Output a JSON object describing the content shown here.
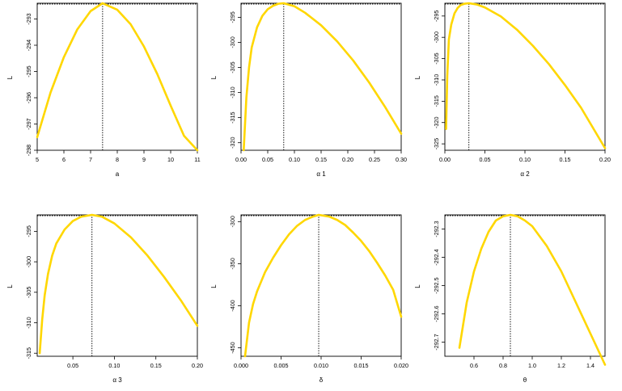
{
  "figure": {
    "curve_color": "#FFD700",
    "ref_line_color": "#000000"
  },
  "chart_data": [
    {
      "type": "line",
      "xlabel": "a",
      "ylabel": "L",
      "xlim": [
        5,
        11
      ],
      "ylim": [
        -298.0,
        -292.4
      ],
      "xticks": [
        5,
        6,
        7,
        8,
        9,
        10,
        11
      ],
      "xtick_labels": [
        "5",
        "6",
        "7",
        "8",
        "9",
        "10",
        "11"
      ],
      "yticks": [
        -298,
        -297,
        -296,
        -295,
        -294,
        -293
      ],
      "ytick_labels": [
        "-298",
        "-297",
        "-296",
        "-295",
        "-294",
        "-293"
      ],
      "reference": {
        "x": 7.45,
        "y": -292.4
      },
      "series": [
        {
          "x": [
            5,
            5.5,
            6,
            6.5,
            7,
            7.45,
            8,
            8.5,
            9,
            9.5,
            10,
            10.5,
            11
          ],
          "y": [
            -297.5,
            -295.8,
            -294.45,
            -293.4,
            -292.7,
            -292.4,
            -292.65,
            -293.2,
            -294.05,
            -295.1,
            -296.3,
            -297.45,
            -298.0
          ]
        }
      ]
    },
    {
      "type": "line",
      "xlabel": "α 1",
      "ylabel": "L",
      "xlim": [
        0.0,
        0.3
      ],
      "ylim": [
        -321.5,
        -292.2
      ],
      "xticks": [
        0.0,
        0.05,
        0.1,
        0.15,
        0.2,
        0.25,
        0.3
      ],
      "xtick_labels": [
        "0.00",
        "0.05",
        "0.10",
        "0.15",
        "0.20",
        "0.25",
        "0.30"
      ],
      "yticks": [
        -320,
        -315,
        -310,
        -305,
        -300,
        -295
      ],
      "ytick_labels": [
        "-320",
        "-315",
        "-310",
        "-305",
        "-300",
        "-295"
      ],
      "reference": {
        "x": 0.08,
        "y": -292.2
      },
      "series": [
        {
          "x": [
            0.005,
            0.01,
            0.015,
            0.02,
            0.03,
            0.04,
            0.05,
            0.06,
            0.07,
            0.08,
            0.1,
            0.12,
            0.15,
            0.18,
            0.21,
            0.24,
            0.27,
            0.3
          ],
          "y": [
            -321.5,
            -311.0,
            -305.0,
            -301.0,
            -297.0,
            -294.7,
            -293.4,
            -292.7,
            -292.3,
            -292.2,
            -292.8,
            -294.1,
            -296.6,
            -299.8,
            -303.6,
            -308.0,
            -312.9,
            -318.2
          ]
        }
      ]
    },
    {
      "type": "line",
      "xlabel": "α 2",
      "ylabel": "L",
      "xlim": [
        0.0,
        0.2
      ],
      "ylim": [
        -326.5,
        -292.0
      ],
      "xticks": [
        0.0,
        0.05,
        0.1,
        0.15,
        0.2
      ],
      "xtick_labels": [
        "0.00",
        "0.05",
        "0.10",
        "0.15",
        "0.20"
      ],
      "yticks": [
        -325,
        -320,
        -315,
        -310,
        -305,
        -300,
        -295
      ],
      "ytick_labels": [
        "-325",
        "-320",
        "-315",
        "-310",
        "-305",
        "-300",
        "-295"
      ],
      "reference": {
        "x": 0.03,
        "y": -292.0
      },
      "series": [
        {
          "x": [
            0.0015,
            0.003,
            0.005,
            0.008,
            0.012,
            0.016,
            0.02,
            0.025,
            0.03,
            0.04,
            0.05,
            0.07,
            0.09,
            0.11,
            0.13,
            0.15,
            0.17,
            0.2
          ],
          "y": [
            -321.5,
            -309.0,
            -300.5,
            -297.0,
            -294.4,
            -293.1,
            -292.4,
            -292.1,
            -292.0,
            -292.3,
            -293.0,
            -295.1,
            -298.2,
            -302.0,
            -306.3,
            -311.2,
            -316.5,
            -326.0
          ]
        }
      ]
    },
    {
      "type": "line",
      "xlabel": "α 3",
      "ylabel": "L",
      "xlim": [
        0.007,
        0.2
      ],
      "ylim": [
        -315.5,
        -292.3
      ],
      "xticks": [
        0.05,
        0.1,
        0.15,
        0.2
      ],
      "xtick_labels": [
        "0.05",
        "0.10",
        "0.15",
        "0.20"
      ],
      "yticks": [
        -315,
        -310,
        -305,
        -300,
        -295
      ],
      "ytick_labels": [
        "-315",
        "-310",
        "-305",
        "-300",
        "-295"
      ],
      "reference": {
        "x": 0.073,
        "y": -292.3
      },
      "series": [
        {
          "x": [
            0.01,
            0.013,
            0.016,
            0.02,
            0.025,
            0.03,
            0.04,
            0.05,
            0.06,
            0.073,
            0.085,
            0.1,
            0.12,
            0.14,
            0.16,
            0.18,
            0.2
          ],
          "y": [
            -315.0,
            -309.5,
            -305.5,
            -302.0,
            -299.0,
            -297.0,
            -294.7,
            -293.3,
            -292.6,
            -292.3,
            -292.6,
            -293.7,
            -296.0,
            -299.0,
            -302.5,
            -306.3,
            -310.5
          ]
        }
      ]
    },
    {
      "type": "line",
      "xlabel": "δ",
      "ylabel": "L",
      "xlim": [
        0.0,
        0.02
      ],
      "ylim": [
        -460,
        -292
      ],
      "xticks": [
        0.0,
        0.005,
        0.01,
        0.015,
        0.02
      ],
      "xtick_labels": [
        "0.000",
        "0.005",
        "0.010",
        "0.015",
        "0.020"
      ],
      "yticks": [
        -450,
        -400,
        -350,
        -300
      ],
      "ytick_labels": [
        "-450",
        "-400",
        "-350",
        "-300"
      ],
      "reference": {
        "x": 0.0097,
        "y": -292
      },
      "series": [
        {
          "x": [
            0.0005,
            0.001,
            0.0015,
            0.002,
            0.003,
            0.004,
            0.005,
            0.006,
            0.007,
            0.008,
            0.009,
            0.0097,
            0.011,
            0.012,
            0.013,
            0.014,
            0.015,
            0.016,
            0.017,
            0.018,
            0.019,
            0.02
          ],
          "y": [
            -460,
            -420,
            -398,
            -383,
            -360,
            -343,
            -328,
            -315,
            -305,
            -298,
            -294,
            -292,
            -294,
            -298,
            -304,
            -313,
            -323,
            -335,
            -349,
            -364,
            -381,
            -413
          ]
        }
      ]
    },
    {
      "type": "line",
      "xlabel": "θ",
      "ylabel": "L",
      "xlim": [
        0.4,
        1.5
      ],
      "ylim": [
        -292.75,
        -292.25
      ],
      "xticks": [
        0.6,
        0.8,
        1.0,
        1.2,
        1.4
      ],
      "xtick_labels": [
        "0.6",
        "0.8",
        "1.0",
        "1.2",
        "1.4"
      ],
      "yticks": [
        -292.7,
        -292.6,
        -292.5,
        -292.4,
        -292.3
      ],
      "ytick_labels": [
        "-292.7",
        "-292.6",
        "-292.5",
        "-292.4",
        "-292.3"
      ],
      "reference": {
        "x": 0.85,
        "y": -292.25
      },
      "series": [
        {
          "x": [
            0.5,
            0.55,
            0.6,
            0.65,
            0.7,
            0.75,
            0.8,
            0.85,
            0.9,
            0.95,
            1.0,
            1.1,
            1.2,
            1.3,
            1.4,
            1.5
          ],
          "y": [
            -292.72,
            -292.56,
            -292.45,
            -292.37,
            -292.31,
            -292.27,
            -292.255,
            -292.25,
            -292.255,
            -292.27,
            -292.29,
            -292.36,
            -292.45,
            -292.56,
            -292.67,
            -292.78
          ]
        }
      ]
    }
  ]
}
